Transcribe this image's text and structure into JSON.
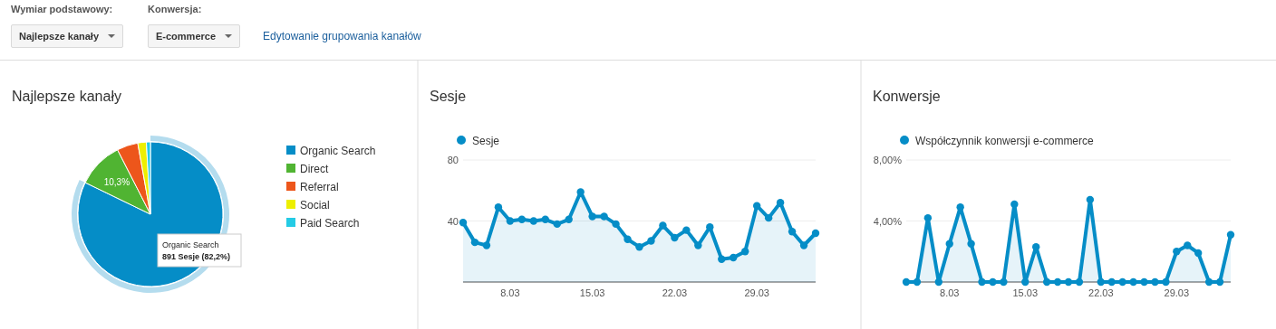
{
  "chart_data": [
    {
      "type": "other",
      "annotations": [
        "Wymiar podstawowy:",
        "Konwersja:",
        "Najlepsze kanały",
        "E-commerce",
        "Edytowanie grupowania kanałów"
      ]
    },
    {
      "type": "pie",
      "title": "Najlepsze kanały",
      "categories": [
        "Organic Search",
        "Direct",
        "Referral",
        "Social",
        "Paid Search"
      ],
      "values": [
        82.2,
        10.3,
        4.7,
        1.9,
        0.9
      ],
      "colors": [
        "#058dc7",
        "#50b432",
        "#ed561b",
        "#edef00",
        "#24cbe5"
      ],
      "value_labels": [
        null,
        "10,3%",
        null,
        null,
        null
      ],
      "legend": "right",
      "annotations": [
        "Organic Search",
        "891 Sesje (82,2%)"
      ]
    },
    {
      "type": "area",
      "title": "Sesje",
      "categories": [
        null,
        null,
        null,
        null,
        "8.03",
        null,
        null,
        null,
        null,
        null,
        null,
        "15.03",
        null,
        null,
        null,
        null,
        null,
        null,
        "22.03",
        null,
        null,
        null,
        null,
        null,
        null,
        "29.03",
        null,
        null,
        null,
        null,
        null
      ],
      "series": [
        {
          "name": "Sesje",
          "color": "#058dc7",
          "values": [
            39,
            26,
            24,
            49,
            40,
            41,
            40,
            41,
            38,
            41,
            59,
            43,
            43,
            38,
            28,
            23,
            27,
            37,
            29,
            34,
            24,
            36,
            15,
            16,
            20,
            50,
            42,
            52,
            33,
            24,
            32
          ]
        }
      ],
      "ylim": [
        0,
        80
      ],
      "yticks": [
        {
          "value": 0,
          "label": null
        },
        40,
        80
      ],
      "grid": "y",
      "legend": "top left",
      "marker": "circle"
    },
    {
      "type": "area",
      "title": "Konwersje",
      "categories": [
        null,
        null,
        null,
        null,
        "8.03",
        null,
        null,
        null,
        null,
        null,
        null,
        "15.03",
        null,
        null,
        null,
        null,
        null,
        null,
        "22.03",
        null,
        null,
        null,
        null,
        null,
        null,
        "29.03",
        null,
        null,
        null,
        null,
        null
      ],
      "series": [
        {
          "name": "Współczynnik konwersji e-commerce",
          "color": "#058dc7",
          "values": [
            0,
            0,
            4.2,
            0,
            2.5,
            4.9,
            2.5,
            0,
            0,
            0,
            5.1,
            0,
            2.3,
            0,
            0,
            0,
            0,
            5.4,
            0,
            0,
            0,
            0,
            0,
            0,
            0,
            2.0,
            2.4,
            1.9,
            0,
            0,
            3.1
          ]
        }
      ],
      "ylim": [
        0,
        8
      ],
      "yticks": [
        {
          "value": 0,
          "label": null
        },
        {
          "value": 4,
          "label": "4,00%"
        },
        {
          "value": 8,
          "label": "8,00%"
        }
      ],
      "grid": "y",
      "legend": "top left",
      "marker": "circle"
    }
  ]
}
